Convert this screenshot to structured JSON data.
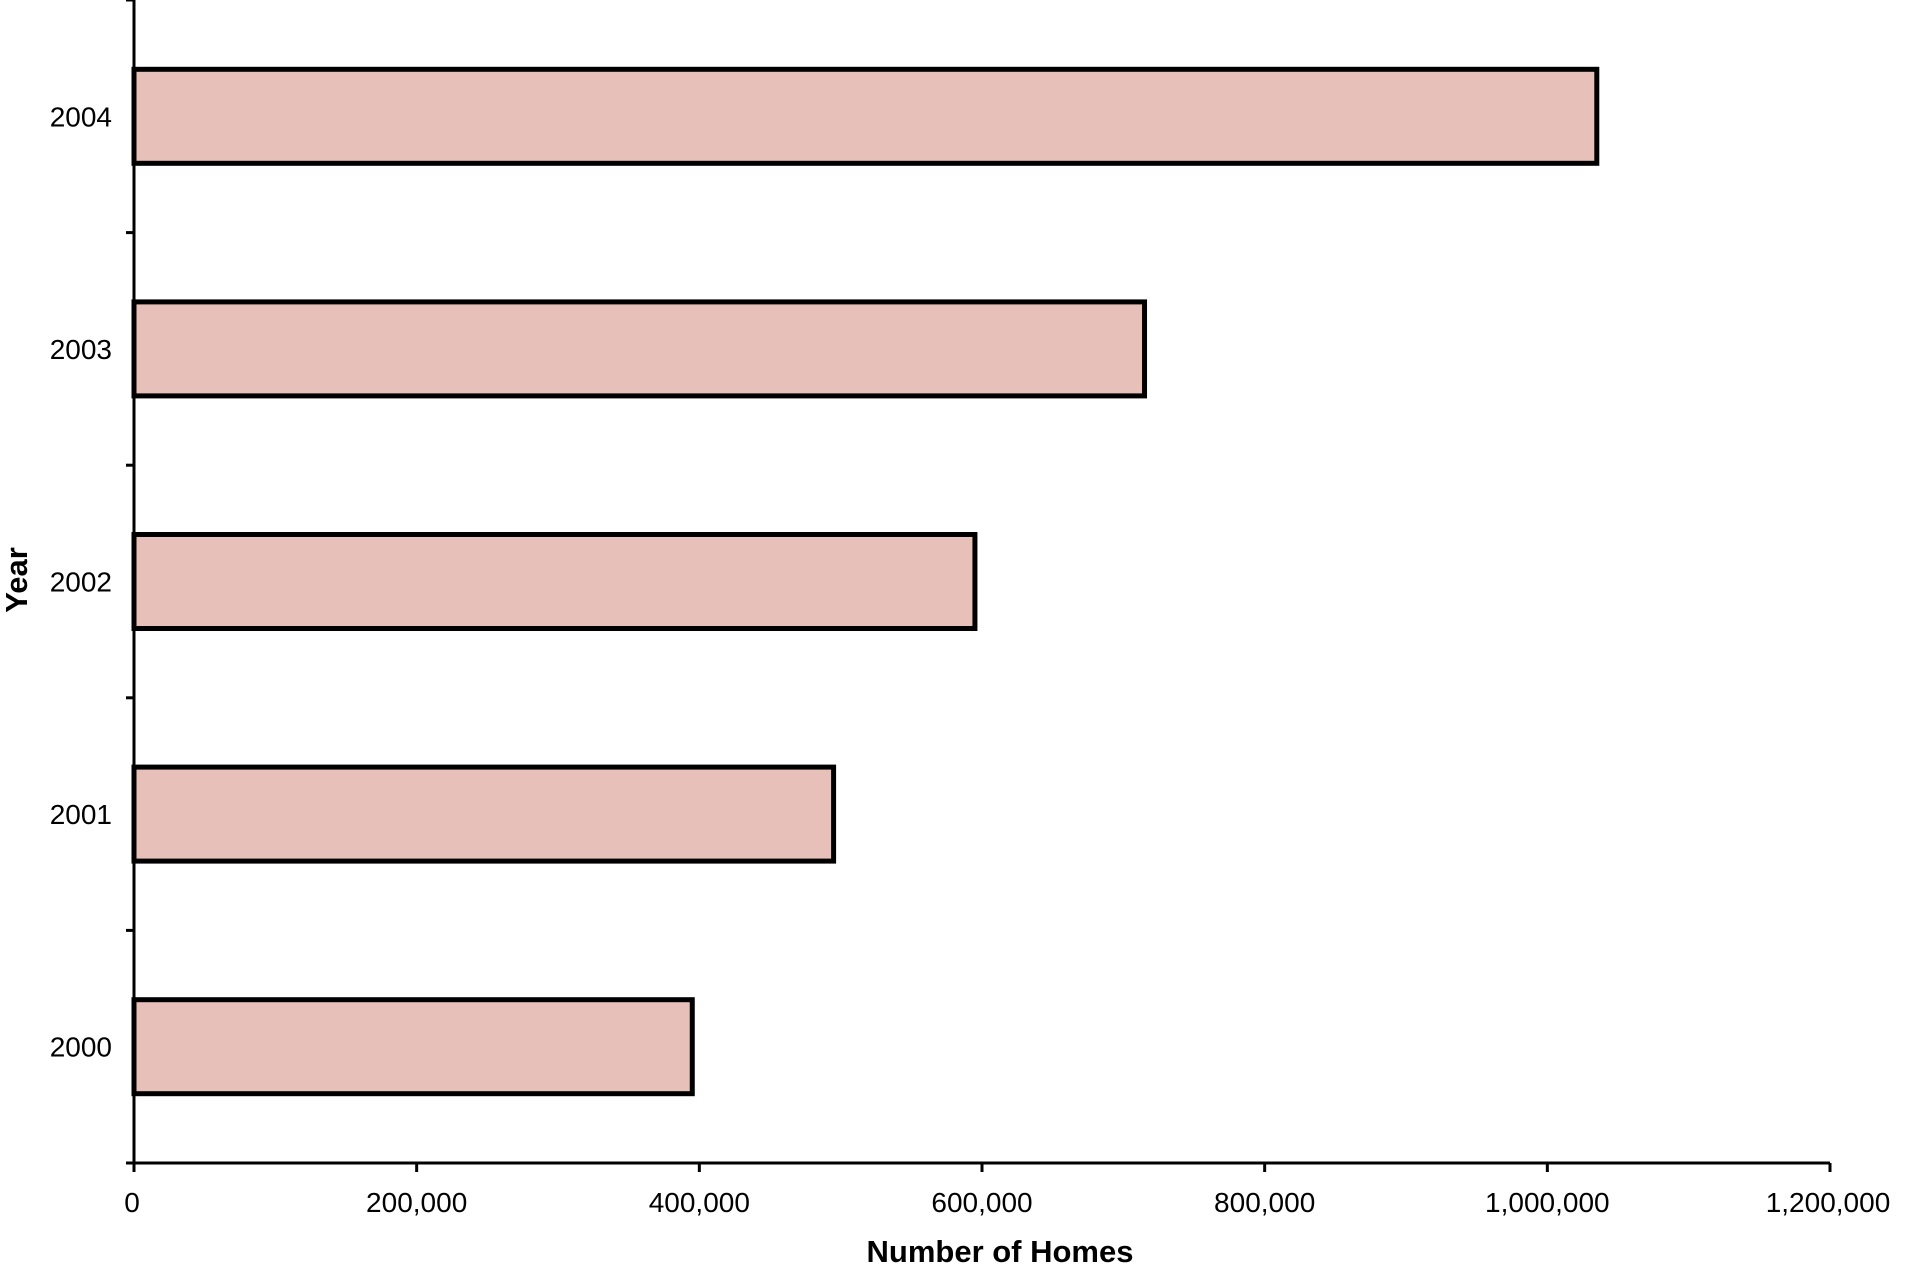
{
  "chart_data": {
    "type": "bar",
    "orientation": "horizontal",
    "title": "",
    "xlabel": "Number of Homes",
    "ylabel": "Year",
    "categories": [
      "2000",
      "2001",
      "2002",
      "2003",
      "2004"
    ],
    "values": [
      395000,
      495000,
      595000,
      715000,
      1035000
    ],
    "xlim": [
      0,
      1200000
    ],
    "x_ticks": [
      0,
      200000,
      400000,
      600000,
      800000,
      1000000,
      1200000
    ],
    "x_tick_labels": [
      "0",
      "200,000",
      "400,000",
      "600,000",
      "800,000",
      "1,000,000",
      "1,200,000"
    ],
    "grid": false,
    "legend": "none",
    "colors": {
      "bar_fill": "#e8c0ba",
      "bar_stroke": "#000000",
      "axis": "#000000"
    }
  }
}
